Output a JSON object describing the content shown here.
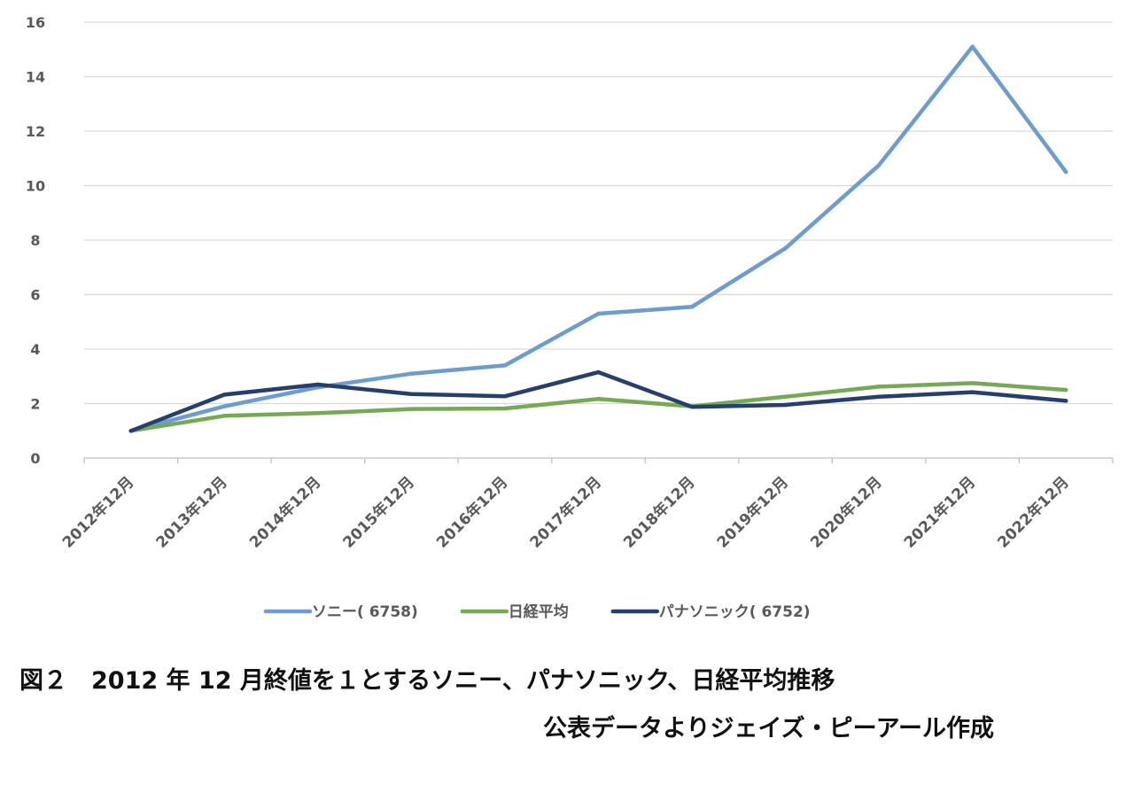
{
  "chart_data": {
    "type": "line",
    "categories": [
      "2012年12月",
      "2013年12月",
      "2014年12月",
      "2015年12月",
      "2016年12月",
      "2017年12月",
      "2018年12月",
      "2019年12月",
      "2020年12月",
      "2021年12月",
      "2022年12月"
    ],
    "series": [
      {
        "name": "ソニー( 6758)",
        "color": "#6e9ccf",
        "values": [
          1.0,
          1.9,
          2.6,
          3.1,
          3.4,
          5.3,
          5.55,
          7.7,
          10.75,
          15.1,
          10.5
        ]
      },
      {
        "name": "日経平均",
        "color": "#76a856",
        "values": [
          1.0,
          1.55,
          1.65,
          1.8,
          1.82,
          2.17,
          1.9,
          2.25,
          2.62,
          2.75,
          2.5
        ]
      },
      {
        "name": "パナソニック( 6752)",
        "color": "#26406b",
        "values": [
          1.0,
          2.33,
          2.7,
          2.35,
          2.27,
          3.15,
          1.88,
          1.95,
          2.25,
          2.42,
          2.1
        ]
      }
    ],
    "yticks": [
      "0",
      "2",
      "4",
      "6",
      "8",
      "10",
      "12",
      "14",
      "16"
    ],
    "ylim": [
      0,
      16
    ],
    "grid": true,
    "legend_position": "bottom"
  },
  "captions": {
    "main": "図２　2012 年 12 月終値を１とするソニー、パナソニック、日経平均推移",
    "source": "公表データよりジェイズ・ピーアール作成"
  }
}
